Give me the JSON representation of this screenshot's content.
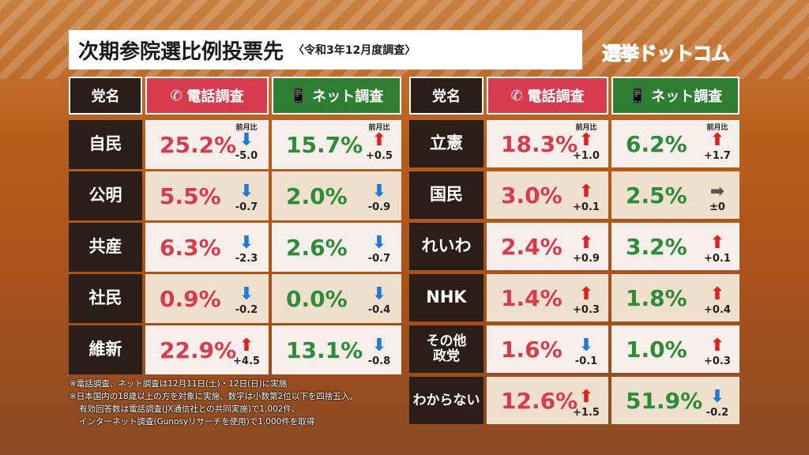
{
  "title": "次期参院選比例投票先",
  "subtitle": "〈令和3年12月度調査〉",
  "logo": [
    "選",
    "挙",
    "ド",
    "ッ",
    "ト",
    "コ",
    "ム"
  ],
  "headers": {
    "party": "党名",
    "phone": "電話調査",
    "net": "ネット調査",
    "change_label": "前月比"
  },
  "colors": {
    "phone": "#d83a4e",
    "net": "#2e7d32",
    "party": "#2b1d17",
    "up": "#e02020",
    "down": "#1e7ad6"
  },
  "left": [
    {
      "party": "自民",
      "phone": "25.2%",
      "phone_dir": "down",
      "phone_chg": "-5.0",
      "net": "15.7%",
      "net_dir": "up",
      "net_chg": "+0.5"
    },
    {
      "party": "公明",
      "phone": "5.5%",
      "phone_dir": "down",
      "phone_chg": "-0.7",
      "net": "2.0%",
      "net_dir": "down",
      "net_chg": "-0.9"
    },
    {
      "party": "共産",
      "phone": "6.3%",
      "phone_dir": "down",
      "phone_chg": "-2.3",
      "net": "2.6%",
      "net_dir": "down",
      "net_chg": "-0.7"
    },
    {
      "party": "社民",
      "phone": "0.9%",
      "phone_dir": "down",
      "phone_chg": "-0.2",
      "net": "0.0%",
      "net_dir": "down",
      "net_chg": "-0.4"
    },
    {
      "party": "維新",
      "phone": "22.9%",
      "phone_dir": "up",
      "phone_chg": "+4.5",
      "net": "13.1%",
      "net_dir": "down",
      "net_chg": "-0.8"
    }
  ],
  "right": [
    {
      "party": "立憲",
      "phone": "18.3%",
      "phone_dir": "up",
      "phone_chg": "+1.0",
      "net": "6.2%",
      "net_dir": "up",
      "net_chg": "+1.7"
    },
    {
      "party": "国民",
      "phone": "3.0%",
      "phone_dir": "up",
      "phone_chg": "+0.1",
      "net": "2.5%",
      "net_dir": "flat",
      "net_chg": "±0"
    },
    {
      "party": "れいわ",
      "phone": "2.4%",
      "phone_dir": "up",
      "phone_chg": "+0.9",
      "net": "3.2%",
      "net_dir": "up",
      "net_chg": "+0.1"
    },
    {
      "party": "NHK",
      "phone": "1.4%",
      "phone_dir": "up",
      "phone_chg": "+0.3",
      "net": "1.8%",
      "net_dir": "up",
      "net_chg": "+0.4"
    },
    {
      "party": "その他\n政党",
      "phone": "1.6%",
      "phone_dir": "down",
      "phone_chg": "-0.1",
      "net": "1.0%",
      "net_dir": "up",
      "net_chg": "+0.3"
    },
    {
      "party": "わからない",
      "phone": "12.6%",
      "phone_dir": "up",
      "phone_chg": "+1.5",
      "net": "51.9%",
      "net_dir": "down",
      "net_chg": "-0.2"
    }
  ],
  "notes": [
    "※電話調査、ネット調査は12月11日(土)・12日(日)に実施",
    "※日本国内の18歳以上の方を対象に実施、数字は小数第2位以下を四捨五入。",
    "有効回答数は電話調査(JX通信社との共同実施)で1,002件、",
    "インターネット調査(Gunosyリサーチを使用)で1,000件を取得"
  ]
}
